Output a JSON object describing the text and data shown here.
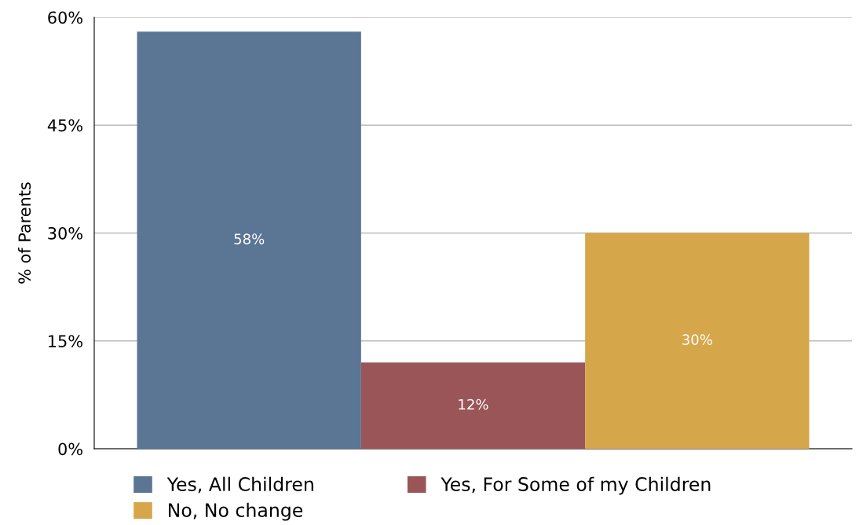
{
  "chart_data": {
    "type": "bar",
    "ylabel": "% of Parents",
    "categories": [
      null
    ],
    "series": [
      {
        "name": "Yes, All Children",
        "color": "#5b7594",
        "values": [
          58
        ]
      },
      {
        "name": "Yes, For Some of my Children",
        "color": "#9a5558",
        "values": [
          12
        ]
      },
      {
        "name": "No, No change",
        "color": "#d6a64a",
        "values": [
          30
        ]
      }
    ],
    "ylim": [
      0,
      60
    ],
    "yticks": [
      {
        "value": 0,
        "label": "0%"
      },
      {
        "value": 15,
        "label": "15%"
      },
      {
        "value": 30,
        "label": "30%"
      },
      {
        "value": 45,
        "label": "45%"
      },
      {
        "value": 60,
        "label": "60%"
      }
    ],
    "value_labels": [
      "58%",
      "12%",
      "30%"
    ],
    "grid": "y",
    "legend": "bottom"
  }
}
